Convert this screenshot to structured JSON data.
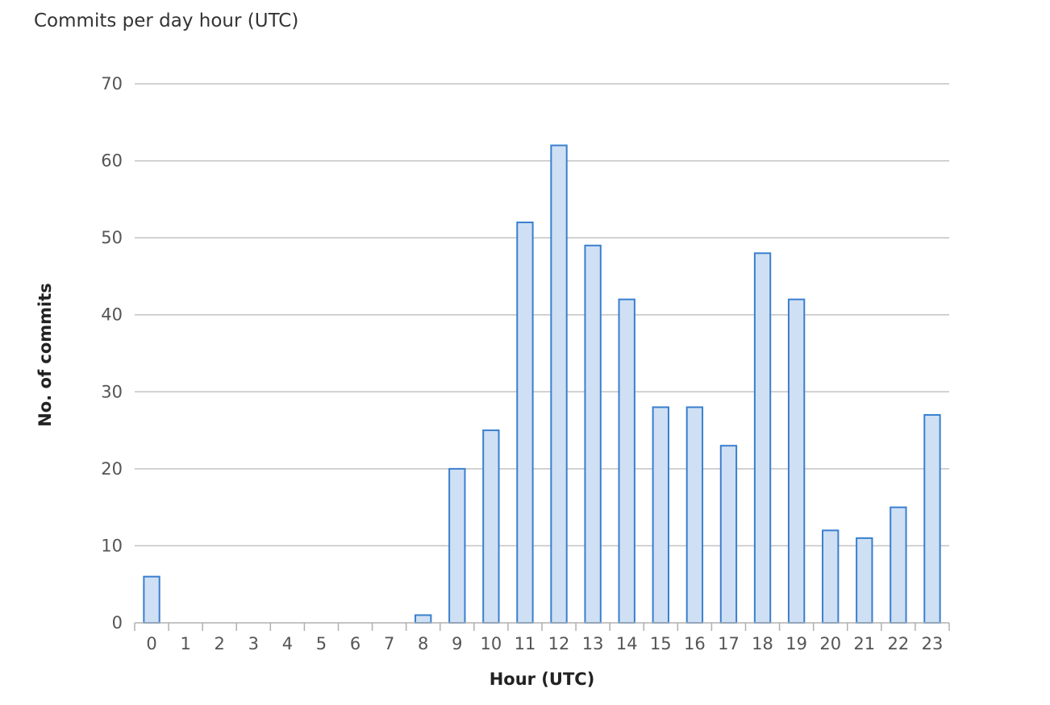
{
  "chart_data": {
    "type": "bar",
    "title": "Commits per day hour (UTC)",
    "xlabel": "Hour (UTC)",
    "ylabel": "No. of commits",
    "categories": [
      "0",
      "1",
      "2",
      "3",
      "4",
      "5",
      "6",
      "7",
      "8",
      "9",
      "10",
      "11",
      "12",
      "13",
      "14",
      "15",
      "16",
      "17",
      "18",
      "19",
      "20",
      "21",
      "22",
      "23"
    ],
    "values": [
      6,
      0,
      0,
      0,
      0,
      0,
      0,
      0,
      1,
      20,
      25,
      52,
      62,
      49,
      42,
      28,
      28,
      23,
      48,
      42,
      12,
      11,
      15,
      27
    ],
    "ylim": [
      0,
      70
    ],
    "yticks": [
      0,
      10,
      20,
      30,
      40,
      50,
      60,
      70
    ],
    "grid": true,
    "legend": "none",
    "colors": {
      "bar_fill": "#cfe0f4",
      "bar_stroke": "#3a7fcf"
    }
  }
}
